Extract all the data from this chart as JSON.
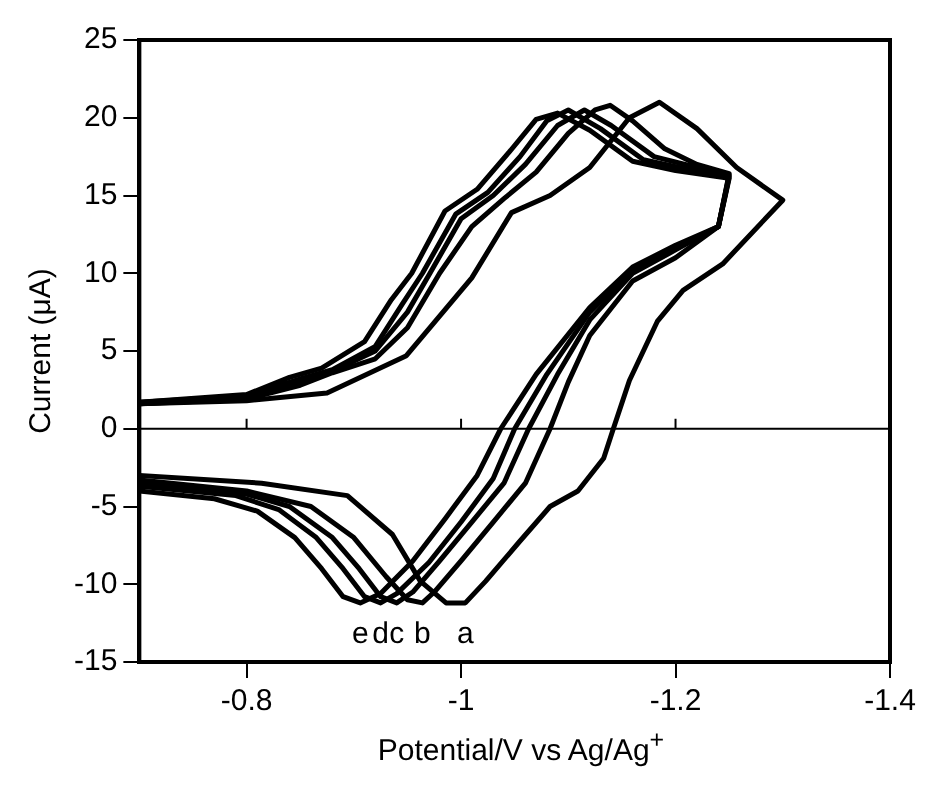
{
  "chart_data": {
    "type": "line",
    "xlabel": "Potential/V vs Ag/Ag$^{+}$",
    "ylabel": "Current (μA)",
    "xlim": [
      -0.7,
      -1.4
    ],
    "xticks": [
      -0.8,
      -1,
      -1.2,
      -1.4
    ],
    "ylim": [
      -15,
      25
    ],
    "yticks": [
      -15,
      -10,
      -5,
      0,
      5,
      10,
      15,
      20,
      25
    ],
    "grid": false,
    "legend": false,
    "marker": "none",
    "line_style": "solid",
    "ref_lines": [
      {
        "axis": "y",
        "value": 0,
        "color": "#000000"
      }
    ],
    "series": [
      {
        "name": "a",
        "color": "#000000",
        "x": [
          -0.7,
          -0.8,
          -0.875,
          -0.949,
          -1.01,
          -1.047,
          -1.083,
          -1.12,
          -1.157,
          -1.185,
          -1.22,
          -1.257,
          -1.3,
          -1.244,
          -1.207,
          -1.183,
          -1.157,
          -1.142,
          -1.133,
          -1.109,
          -1.083,
          -1.054,
          -1.023,
          -1.004,
          -0.986,
          -0.962,
          -0.936,
          -0.894,
          -0.814,
          -0.7
        ],
        "values": [
          1.6,
          1.8,
          2.3,
          4.7,
          9.7,
          13.9,
          15,
          16.8,
          20,
          21,
          19.3,
          16.8,
          14.7,
          10.6,
          8.9,
          6.9,
          3.1,
          0,
          -1.9,
          -4,
          -5,
          -7.3,
          -9.8,
          -11.2,
          -11.2,
          -9.8,
          -6.8,
          -4.3,
          -3.5,
          -3
        ]
      },
      {
        "name": "b",
        "color": "#000000",
        "x": [
          -0.7,
          -0.8,
          -0.85,
          -0.88,
          -0.92,
          -0.95,
          -0.98,
          -1.01,
          -1.04,
          -1.07,
          -1.1,
          -1.125,
          -1.139,
          -1.16,
          -1.19,
          -1.22,
          -1.25,
          -1.24,
          -1.2,
          -1.16,
          -1.12,
          -1.1,
          -1.083,
          -1.06,
          -1.03,
          -1,
          -0.975,
          -0.964,
          -0.95,
          -0.93,
          -0.9,
          -0.86,
          -0.8,
          -0.7
        ],
        "values": [
          1.6,
          1.9,
          2.8,
          3.6,
          4.5,
          6.5,
          10,
          13,
          14.8,
          16.5,
          19,
          20.5,
          20.8,
          19.8,
          18,
          17,
          16.4,
          13,
          11,
          9.5,
          6,
          3,
          0,
          -3.5,
          -6,
          -8.5,
          -10.5,
          -11.2,
          -11,
          -9.5,
          -7,
          -5,
          -4,
          -3.3
        ]
      },
      {
        "name": "c",
        "color": "#000000",
        "x": [
          -0.7,
          -0.8,
          -0.85,
          -0.88,
          -0.92,
          -0.95,
          -0.971,
          -1,
          -1.03,
          -1.06,
          -1.09,
          -1.115,
          -1.14,
          -1.18,
          -1.22,
          -1.25,
          -1.24,
          -1.2,
          -1.16,
          -1.12,
          -1.09,
          -1.063,
          -1.04,
          -1.01,
          -0.98,
          -0.955,
          -0.94,
          -0.925,
          -0.905,
          -0.88,
          -0.84,
          -0.8,
          -0.7
        ],
        "values": [
          1.6,
          2,
          3,
          3.7,
          5,
          7.5,
          10,
          13.5,
          15,
          17,
          19.5,
          20.5,
          19.5,
          17.5,
          16.8,
          16.3,
          13,
          11.5,
          10,
          7,
          3.5,
          0,
          -3.5,
          -6,
          -8.5,
          -10.5,
          -11.2,
          -10.8,
          -9,
          -7,
          -5,
          -4.2,
          -3.5
        ]
      },
      {
        "name": "d",
        "color": "#000000",
        "x": [
          -0.7,
          -0.8,
          -0.85,
          -0.88,
          -0.92,
          -0.945,
          -0.964,
          -0.995,
          -1.025,
          -1.055,
          -1.08,
          -1.1,
          -1.13,
          -1.17,
          -1.21,
          -1.25,
          -1.24,
          -1.2,
          -1.16,
          -1.12,
          -1.08,
          -1.05,
          -1.03,
          -1,
          -0.97,
          -0.94,
          -0.925,
          -0.91,
          -0.89,
          -0.865,
          -0.83,
          -0.79,
          -0.7
        ],
        "values": [
          1.7,
          2.1,
          3.2,
          3.8,
          5.3,
          8,
          10,
          13.8,
          15.2,
          17.5,
          19.8,
          20.5,
          19.3,
          17.3,
          16.7,
          16.2,
          13,
          11.6,
          10.2,
          7.5,
          3.5,
          0,
          -3.2,
          -6,
          -8.6,
          -10.6,
          -11.2,
          -10.8,
          -9,
          -7,
          -5.2,
          -4.3,
          -3.7
        ]
      },
      {
        "name": "e",
        "color": "#000000",
        "x": [
          -0.7,
          -0.8,
          -0.84,
          -0.87,
          -0.91,
          -0.935,
          -0.954,
          -0.985,
          -1.015,
          -1.045,
          -1.07,
          -1.09,
          -1.12,
          -1.16,
          -1.2,
          -1.25,
          -1.24,
          -1.2,
          -1.16,
          -1.12,
          -1.07,
          -1.037,
          -1.015,
          -0.985,
          -0.955,
          -0.925,
          -0.906,
          -0.89,
          -0.87,
          -0.845,
          -0.81,
          -0.77,
          -0.7
        ],
        "values": [
          1.7,
          2.2,
          3.3,
          3.9,
          5.6,
          8.3,
          10,
          14,
          15.4,
          17.8,
          19.9,
          20.3,
          19.2,
          17.2,
          16.6,
          16.1,
          13,
          11.8,
          10.4,
          7.8,
          3.5,
          0,
          -3,
          -5.8,
          -8.5,
          -10.6,
          -11.2,
          -10.8,
          -9,
          -7,
          -5.3,
          -4.5,
          -4
        ]
      }
    ]
  }
}
